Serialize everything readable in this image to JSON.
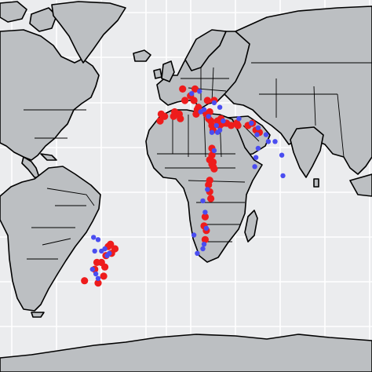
{
  "map": {
    "projection": "plate-carree",
    "lon_range": [
      -150,
      180
    ],
    "lat_range": [
      -78,
      85
    ],
    "background_color": "#ebecee",
    "land_color": "#bcbfc2",
    "grid": true,
    "grid_color": "#ffffff"
  },
  "legend": null,
  "series": [
    {
      "color": "#ee1c1c",
      "points": [
        [
          23,
          46
        ],
        [
          12,
          46
        ],
        [
          19,
          43
        ],
        [
          14,
          41
        ],
        [
          22,
          41
        ],
        [
          26,
          38
        ],
        [
          34,
          41
        ],
        [
          40,
          41
        ],
        [
          -7,
          35
        ],
        [
          -8,
          32
        ],
        [
          -4,
          34
        ],
        [
          5,
          36
        ],
        [
          4,
          34
        ],
        [
          9,
          35
        ],
        [
          10,
          33
        ],
        [
          25,
          37
        ],
        [
          24,
          35
        ],
        [
          33,
          35
        ],
        [
          35,
          33
        ],
        [
          36,
          36
        ],
        [
          37,
          32
        ],
        [
          38,
          30
        ],
        [
          39,
          28
        ],
        [
          43,
          32
        ],
        [
          45,
          30
        ],
        [
          46,
          33
        ],
        [
          48,
          31
        ],
        [
          51,
          31
        ],
        [
          55,
          30
        ],
        [
          60,
          31
        ],
        [
          61,
          30
        ],
        [
          70,
          30
        ],
        [
          74,
          31
        ],
        [
          77,
          28
        ],
        [
          80,
          27
        ],
        [
          38,
          20
        ],
        [
          38,
          17
        ],
        [
          39,
          14
        ],
        [
          36,
          15
        ],
        [
          38,
          13
        ],
        [
          39,
          12
        ],
        [
          40,
          11
        ],
        [
          36,
          6
        ],
        [
          35,
          4
        ],
        [
          36,
          1
        ],
        [
          37,
          -2
        ],
        [
          32,
          -10
        ],
        [
          31,
          -14
        ],
        [
          33,
          -16
        ],
        [
          32,
          -20
        ],
        [
          -52,
          -22
        ],
        [
          -54,
          -23
        ],
        [
          -48,
          -24
        ],
        [
          -51,
          -26
        ],
        [
          -56,
          -27
        ],
        [
          -60,
          -30
        ],
        [
          -64,
          -30
        ],
        [
          -57,
          -32
        ],
        [
          -66,
          -33
        ],
        [
          -58,
          -36
        ],
        [
          -75,
          -38
        ],
        [
          -63,
          -39
        ]
      ]
    },
    {
      "color": "#4a4df0",
      "points": [
        [
          27,
          45
        ],
        [
          20,
          44
        ],
        [
          40,
          40
        ],
        [
          45,
          38
        ],
        [
          31,
          37
        ],
        [
          28,
          36
        ],
        [
          35,
          34
        ],
        [
          38,
          27
        ],
        [
          42,
          30
        ],
        [
          48,
          32
        ],
        [
          45,
          28
        ],
        [
          43,
          27
        ],
        [
          40,
          19
        ],
        [
          62,
          33
        ],
        [
          73,
          31
        ],
        [
          79,
          29
        ],
        [
          78,
          26
        ],
        [
          86,
          26
        ],
        [
          79,
          20
        ],
        [
          77,
          16
        ],
        [
          76,
          12
        ],
        [
          88,
          23
        ],
        [
          94,
          23
        ],
        [
          100,
          17
        ],
        [
          101,
          8
        ],
        [
          34,
          2
        ],
        [
          30,
          -3
        ],
        [
          32,
          -8
        ],
        [
          33,
          -15
        ],
        [
          31,
          -22
        ],
        [
          30,
          -24
        ],
        [
          22,
          -18
        ],
        [
          25,
          -26
        ],
        [
          -67,
          -19
        ],
        [
          -63,
          -20
        ],
        [
          -60,
          -25
        ],
        [
          -66,
          -25
        ],
        [
          -57,
          -24
        ],
        [
          -55,
          -27
        ],
        [
          -53,
          -26
        ],
        [
          -65,
          -35
        ],
        [
          -68,
          -33
        ],
        [
          -63,
          -37
        ]
      ]
    }
  ]
}
